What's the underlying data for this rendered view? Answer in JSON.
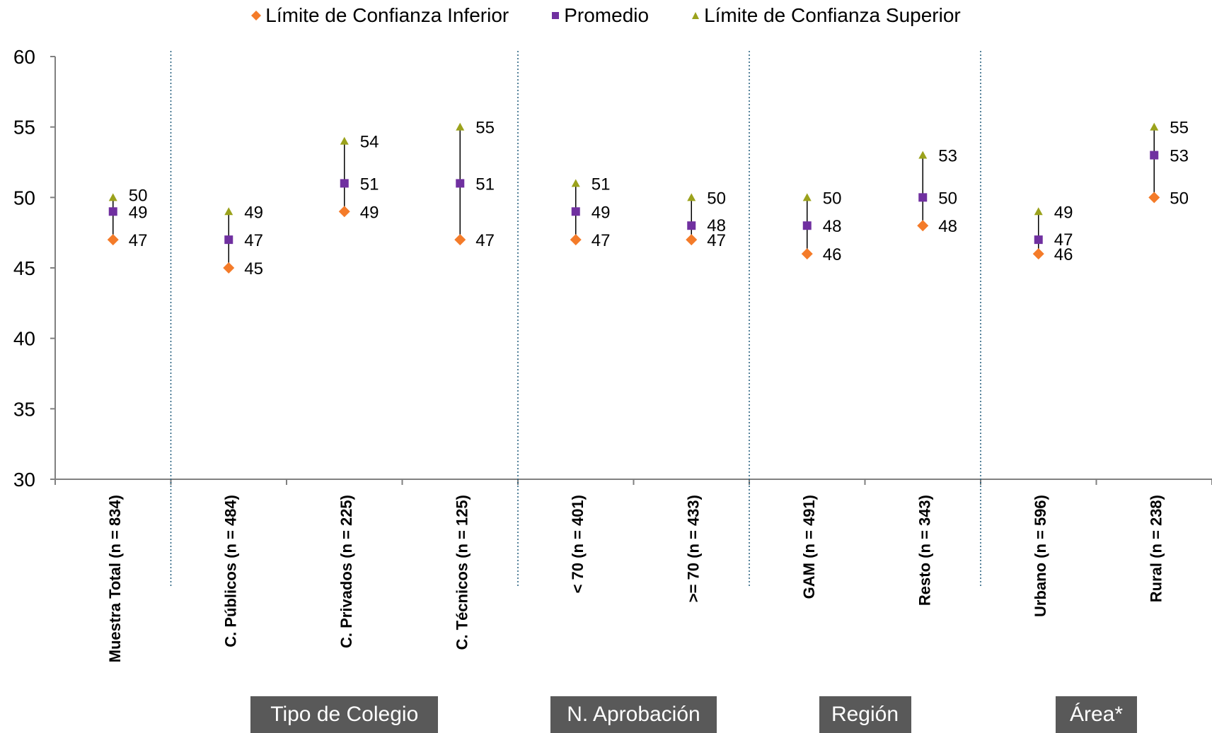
{
  "chart_data": {
    "type": "scatter",
    "title": "",
    "xlabel": "",
    "ylabel": "",
    "ylim": [
      30,
      60
    ],
    "yticks": [
      30,
      35,
      40,
      45,
      50,
      55,
      60
    ],
    "grid": false,
    "legend_position": "top-center",
    "categories": [
      "Muestra Total (n = 834)",
      "C. Públicos (n = 484)",
      "C. Privados (n = 225)",
      "C. Técnicos (n = 125)",
      "< 70 (n = 401)",
      ">= 70 (n = 433)",
      "GAM (n = 491)",
      "Resto (n = 343)",
      "Urbano (n = 596)",
      "Rural (n = 238)"
    ],
    "series": [
      {
        "name": "Límite de Confianza Inferior",
        "marker": "diamond",
        "color": "#F47B29",
        "values": [
          47,
          45,
          49,
          47,
          47,
          47,
          46,
          48,
          46,
          50
        ]
      },
      {
        "name": "Promedio",
        "marker": "square",
        "color": "#7030A0",
        "values": [
          49,
          47,
          51,
          51,
          49,
          48,
          48,
          50,
          47,
          53
        ]
      },
      {
        "name": "Límite de Confianza Superior",
        "marker": "triangle",
        "color": "#9BA21C",
        "values": [
          50,
          49,
          54,
          55,
          51,
          50,
          50,
          53,
          49,
          55
        ]
      }
    ],
    "groups": [
      {
        "label": "Tipo de Colegio",
        "start": 1,
        "end": 3
      },
      {
        "label": "N. Aprobación",
        "start": 4,
        "end": 5
      },
      {
        "label": "Región",
        "start": 6,
        "end": 7
      },
      {
        "label": "Área*",
        "start": 8,
        "end": 9
      }
    ],
    "separators_after": [
      0,
      3,
      5,
      7
    ]
  }
}
